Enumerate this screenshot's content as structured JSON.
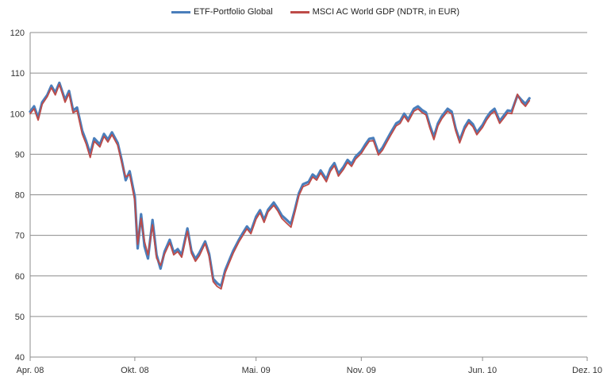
{
  "chart_data": {
    "type": "line",
    "title": "",
    "xlabel": "",
    "ylabel": "",
    "ylim": [
      40,
      120
    ],
    "y_ticks": [
      40,
      50,
      60,
      70,
      80,
      90,
      100,
      110,
      120
    ],
    "x_range": [
      "2008-04-01",
      "2010-12-01"
    ],
    "x_ticks": [
      {
        "date": "2008-04-01",
        "label": "Apr. 08"
      },
      {
        "date": "2008-10-01",
        "label": "Okt. 08"
      },
      {
        "date": "2009-05-01",
        "label": "Mai. 09"
      },
      {
        "date": "2009-11-01",
        "label": "Nov. 09"
      },
      {
        "date": "2010-06-01",
        "label": "Jun. 10"
      },
      {
        "date": "2010-12-01",
        "label": "Dez. 10"
      }
    ],
    "grid": "horizontal",
    "legend_position": "top",
    "series": [
      {
        "name": "ETF-Portfolio Global",
        "color": "#4a7ebb",
        "points": [
          [
            "2008-04-01",
            100.5
          ],
          [
            "2008-04-08",
            101.8
          ],
          [
            "2008-04-15",
            99.0
          ],
          [
            "2008-04-22",
            102.8
          ],
          [
            "2008-05-01",
            104.6
          ],
          [
            "2008-05-08",
            106.9
          ],
          [
            "2008-05-15",
            105.2
          ],
          [
            "2008-05-22",
            107.6
          ],
          [
            "2008-06-01",
            103.4
          ],
          [
            "2008-06-08",
            105.6
          ],
          [
            "2008-06-15",
            100.8
          ],
          [
            "2008-06-22",
            101.5
          ],
          [
            "2008-07-01",
            95.8
          ],
          [
            "2008-07-08",
            93.2
          ],
          [
            "2008-07-15",
            90.1
          ],
          [
            "2008-07-22",
            93.9
          ],
          [
            "2008-08-01",
            92.4
          ],
          [
            "2008-08-08",
            95.0
          ],
          [
            "2008-08-15",
            93.6
          ],
          [
            "2008-08-22",
            95.4
          ],
          [
            "2008-09-01",
            92.8
          ],
          [
            "2008-09-08",
            88.6
          ],
          [
            "2008-09-15",
            83.6
          ],
          [
            "2008-09-22",
            85.8
          ],
          [
            "2008-10-01",
            79.5
          ],
          [
            "2008-10-06",
            66.8
          ],
          [
            "2008-10-12",
            75.2
          ],
          [
            "2008-10-18",
            67.3
          ],
          [
            "2008-10-24",
            64.3
          ],
          [
            "2008-11-01",
            73.8
          ],
          [
            "2008-11-08",
            65.2
          ],
          [
            "2008-11-15",
            61.8
          ],
          [
            "2008-11-22",
            66.0
          ],
          [
            "2008-12-01",
            68.9
          ],
          [
            "2008-12-08",
            65.8
          ],
          [
            "2008-12-15",
            66.6
          ],
          [
            "2008-12-22",
            65.2
          ],
          [
            "2009-01-01",
            71.7
          ],
          [
            "2009-01-08",
            66.2
          ],
          [
            "2009-01-15",
            64.2
          ],
          [
            "2009-01-22",
            65.7
          ],
          [
            "2009-02-01",
            68.5
          ],
          [
            "2009-02-08",
            65.4
          ],
          [
            "2009-02-15",
            59.3
          ],
          [
            "2009-02-22",
            58.2
          ],
          [
            "2009-03-01",
            57.5
          ],
          [
            "2009-03-08",
            61.4
          ],
          [
            "2009-03-15",
            63.8
          ],
          [
            "2009-03-22",
            66.2
          ],
          [
            "2009-04-01",
            68.9
          ],
          [
            "2009-04-08",
            70.6
          ],
          [
            "2009-04-15",
            72.2
          ],
          [
            "2009-04-22",
            71.0
          ],
          [
            "2009-05-01",
            74.6
          ],
          [
            "2009-05-08",
            76.2
          ],
          [
            "2009-05-15",
            73.8
          ],
          [
            "2009-05-22",
            76.3
          ],
          [
            "2009-06-01",
            78.1
          ],
          [
            "2009-06-08",
            76.6
          ],
          [
            "2009-06-15",
            74.9
          ],
          [
            "2009-06-22",
            74.0
          ],
          [
            "2009-07-01",
            72.8
          ],
          [
            "2009-07-08",
            76.4
          ],
          [
            "2009-07-15",
            80.4
          ],
          [
            "2009-07-22",
            82.6
          ],
          [
            "2009-08-01",
            83.2
          ],
          [
            "2009-08-08",
            85.0
          ],
          [
            "2009-08-15",
            84.2
          ],
          [
            "2009-08-22",
            86.0
          ],
          [
            "2009-09-01",
            83.8
          ],
          [
            "2009-09-08",
            86.5
          ],
          [
            "2009-09-15",
            87.8
          ],
          [
            "2009-09-22",
            85.2
          ],
          [
            "2009-10-01",
            86.9
          ],
          [
            "2009-10-08",
            88.6
          ],
          [
            "2009-10-15",
            87.6
          ],
          [
            "2009-10-22",
            89.4
          ],
          [
            "2009-11-01",
            90.8
          ],
          [
            "2009-11-08",
            92.4
          ],
          [
            "2009-11-15",
            93.8
          ],
          [
            "2009-11-22",
            94.0
          ],
          [
            "2009-12-01",
            90.4
          ],
          [
            "2009-12-08",
            91.6
          ],
          [
            "2009-12-15",
            93.4
          ],
          [
            "2009-12-22",
            95.2
          ],
          [
            "2010-01-01",
            97.6
          ],
          [
            "2010-01-08",
            98.2
          ],
          [
            "2010-01-15",
            100.0
          ],
          [
            "2010-01-22",
            98.6
          ],
          [
            "2010-02-01",
            101.2
          ],
          [
            "2010-02-08",
            101.8
          ],
          [
            "2010-02-15",
            100.9
          ],
          [
            "2010-02-22",
            100.3
          ],
          [
            "2010-03-01",
            97.0
          ],
          [
            "2010-03-08",
            94.3
          ],
          [
            "2010-03-15",
            97.6
          ],
          [
            "2010-03-22",
            99.4
          ],
          [
            "2010-04-01",
            101.2
          ],
          [
            "2010-04-08",
            100.5
          ],
          [
            "2010-04-15",
            96.4
          ],
          [
            "2010-04-22",
            93.4
          ],
          [
            "2010-05-01",
            96.8
          ],
          [
            "2010-05-08",
            98.4
          ],
          [
            "2010-05-15",
            97.4
          ],
          [
            "2010-05-22",
            95.4
          ],
          [
            "2010-06-01",
            97.2
          ],
          [
            "2010-06-08",
            99.0
          ],
          [
            "2010-06-15",
            100.4
          ],
          [
            "2010-06-22",
            101.2
          ],
          [
            "2010-07-01",
            98.2
          ],
          [
            "2010-07-08",
            99.5
          ],
          [
            "2010-07-15",
            100.8
          ],
          [
            "2010-07-22",
            100.6
          ],
          [
            "2010-08-01",
            104.5
          ],
          [
            "2010-08-08",
            103.4
          ],
          [
            "2010-08-15",
            102.4
          ],
          [
            "2010-08-22",
            103.8
          ]
        ]
      },
      {
        "name": "MSCI AC World GDP (NDTR, in EUR)",
        "color": "#be4b48",
        "points": [
          [
            "2008-04-01",
            100.0
          ],
          [
            "2008-04-08",
            101.2
          ],
          [
            "2008-04-15",
            98.4
          ],
          [
            "2008-04-22",
            102.3
          ],
          [
            "2008-05-01",
            104.2
          ],
          [
            "2008-05-08",
            106.4
          ],
          [
            "2008-05-15",
            104.6
          ],
          [
            "2008-05-22",
            107.2
          ],
          [
            "2008-06-01",
            102.8
          ],
          [
            "2008-06-08",
            105.0
          ],
          [
            "2008-06-15",
            100.2
          ],
          [
            "2008-06-22",
            100.8
          ],
          [
            "2008-07-01",
            95.0
          ],
          [
            "2008-07-08",
            92.5
          ],
          [
            "2008-07-15",
            89.2
          ],
          [
            "2008-07-22",
            93.2
          ],
          [
            "2008-08-01",
            91.8
          ],
          [
            "2008-08-08",
            94.4
          ],
          [
            "2008-08-15",
            93.0
          ],
          [
            "2008-08-22",
            94.8
          ],
          [
            "2008-09-01",
            92.2
          ],
          [
            "2008-09-08",
            88.0
          ],
          [
            "2008-09-15",
            84.4
          ],
          [
            "2008-09-22",
            85.0
          ],
          [
            "2008-10-01",
            78.5
          ],
          [
            "2008-10-06",
            67.8
          ],
          [
            "2008-10-12",
            74.2
          ],
          [
            "2008-10-18",
            68.5
          ],
          [
            "2008-10-24",
            65.2
          ],
          [
            "2008-11-01",
            72.6
          ],
          [
            "2008-11-08",
            64.4
          ],
          [
            "2008-11-15",
            62.6
          ],
          [
            "2008-11-22",
            65.4
          ],
          [
            "2008-12-01",
            68.2
          ],
          [
            "2008-12-08",
            65.2
          ],
          [
            "2008-12-15",
            66.0
          ],
          [
            "2008-12-22",
            64.6
          ],
          [
            "2009-01-01",
            71.0
          ],
          [
            "2009-01-08",
            65.6
          ],
          [
            "2009-01-15",
            63.6
          ],
          [
            "2009-01-22",
            65.0
          ],
          [
            "2009-02-01",
            68.0
          ],
          [
            "2009-02-08",
            64.8
          ],
          [
            "2009-02-15",
            58.6
          ],
          [
            "2009-02-22",
            57.4
          ],
          [
            "2009-03-01",
            56.8
          ],
          [
            "2009-03-08",
            60.8
          ],
          [
            "2009-03-15",
            63.2
          ],
          [
            "2009-03-22",
            65.6
          ],
          [
            "2009-04-01",
            68.4
          ],
          [
            "2009-04-08",
            70.0
          ],
          [
            "2009-04-15",
            71.6
          ],
          [
            "2009-04-22",
            70.4
          ],
          [
            "2009-05-01",
            74.0
          ],
          [
            "2009-05-08",
            75.6
          ],
          [
            "2009-05-15",
            73.2
          ],
          [
            "2009-05-22",
            75.8
          ],
          [
            "2009-06-01",
            77.4
          ],
          [
            "2009-06-08",
            76.0
          ],
          [
            "2009-06-15",
            74.2
          ],
          [
            "2009-06-22",
            73.2
          ],
          [
            "2009-07-01",
            72.0
          ],
          [
            "2009-07-08",
            75.8
          ],
          [
            "2009-07-15",
            79.8
          ],
          [
            "2009-07-22",
            82.0
          ],
          [
            "2009-08-01",
            82.6
          ],
          [
            "2009-08-08",
            84.4
          ],
          [
            "2009-08-15",
            83.6
          ],
          [
            "2009-08-22",
            85.4
          ],
          [
            "2009-09-01",
            83.2
          ],
          [
            "2009-09-08",
            85.8
          ],
          [
            "2009-09-15",
            87.2
          ],
          [
            "2009-09-22",
            84.6
          ],
          [
            "2009-10-01",
            86.3
          ],
          [
            "2009-10-08",
            88.0
          ],
          [
            "2009-10-15",
            87.0
          ],
          [
            "2009-10-22",
            88.8
          ],
          [
            "2009-11-01",
            90.2
          ],
          [
            "2009-11-08",
            91.8
          ],
          [
            "2009-11-15",
            93.2
          ],
          [
            "2009-11-22",
            93.4
          ],
          [
            "2009-12-01",
            89.8
          ],
          [
            "2009-12-08",
            91.0
          ],
          [
            "2009-12-15",
            92.8
          ],
          [
            "2009-12-22",
            94.6
          ],
          [
            "2010-01-01",
            97.0
          ],
          [
            "2010-01-08",
            97.6
          ],
          [
            "2010-01-15",
            99.4
          ],
          [
            "2010-01-22",
            98.0
          ],
          [
            "2010-02-01",
            100.6
          ],
          [
            "2010-02-08",
            101.2
          ],
          [
            "2010-02-15",
            100.3
          ],
          [
            "2010-02-22",
            99.7
          ],
          [
            "2010-03-01",
            96.4
          ],
          [
            "2010-03-08",
            93.6
          ],
          [
            "2010-03-15",
            97.0
          ],
          [
            "2010-03-22",
            98.8
          ],
          [
            "2010-04-01",
            100.6
          ],
          [
            "2010-04-08",
            99.9
          ],
          [
            "2010-04-15",
            95.8
          ],
          [
            "2010-04-22",
            92.8
          ],
          [
            "2010-05-01",
            96.2
          ],
          [
            "2010-05-08",
            97.8
          ],
          [
            "2010-05-15",
            96.8
          ],
          [
            "2010-05-22",
            94.8
          ],
          [
            "2010-06-01",
            96.6
          ],
          [
            "2010-06-08",
            98.4
          ],
          [
            "2010-06-15",
            99.8
          ],
          [
            "2010-06-22",
            100.6
          ],
          [
            "2010-07-01",
            97.6
          ],
          [
            "2010-07-08",
            98.9
          ],
          [
            "2010-07-15",
            100.2
          ],
          [
            "2010-07-22",
            100.0
          ],
          [
            "2010-08-01",
            104.8
          ],
          [
            "2010-08-08",
            102.8
          ],
          [
            "2010-08-15",
            101.8
          ],
          [
            "2010-08-22",
            103.2
          ]
        ]
      }
    ]
  }
}
